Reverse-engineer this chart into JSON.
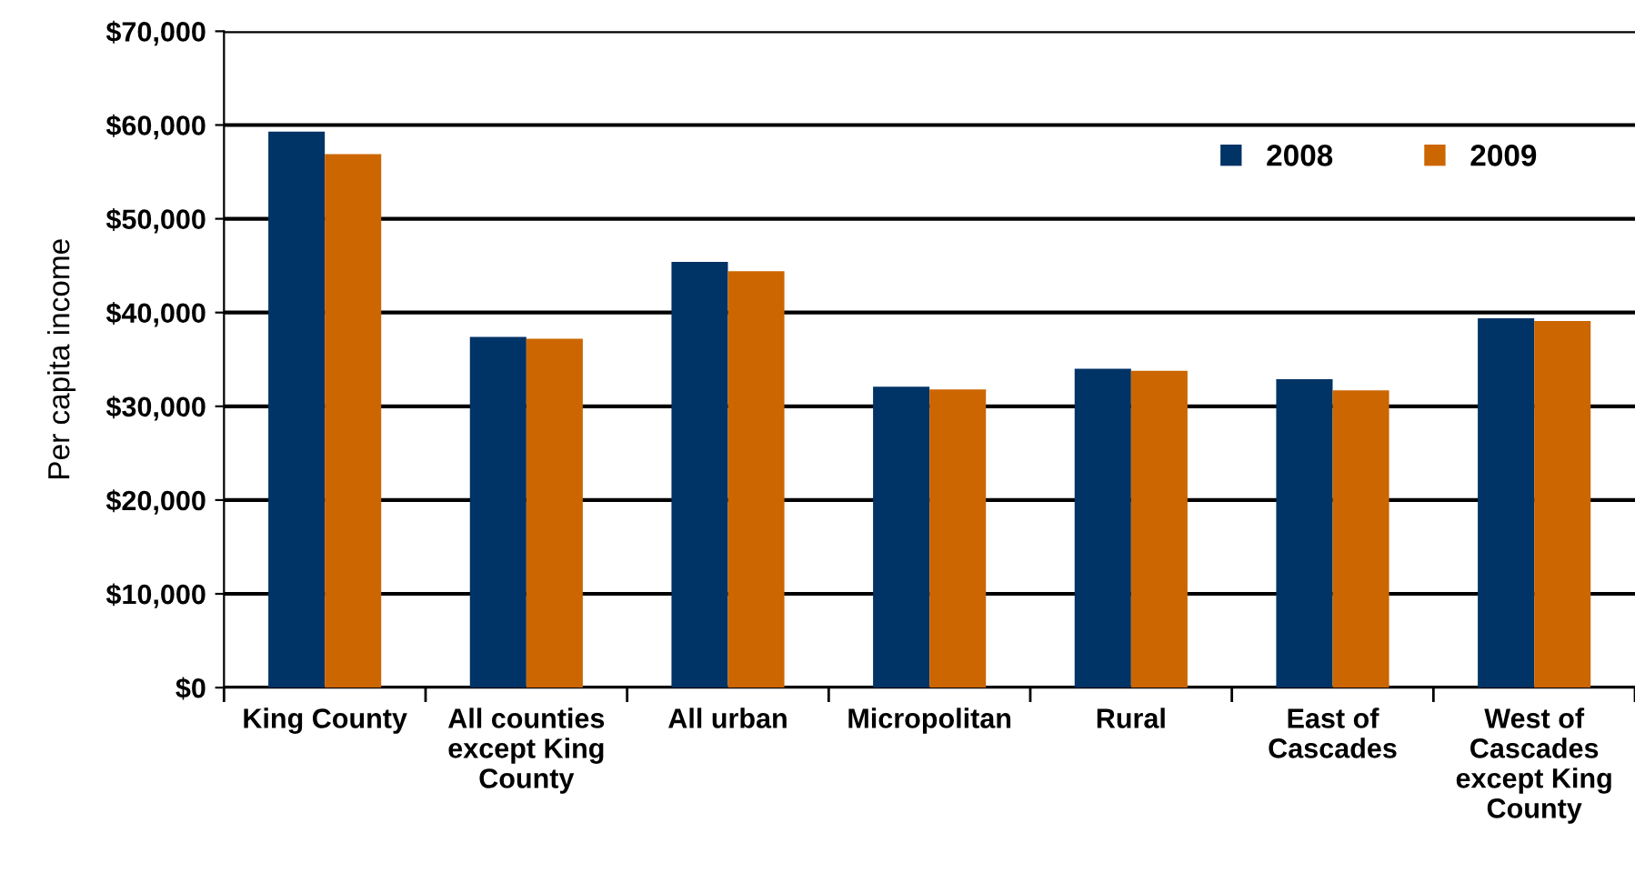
{
  "chart_data": {
    "type": "bar",
    "ylabel": "Per capita income",
    "categories": [
      "King County",
      "All counties\nexcept King\nCounty",
      "All urban",
      "Micropolitan",
      "Rural",
      "East of\nCascades",
      "West of\nCascades\nexcept King\nCounty"
    ],
    "series": [
      {
        "name": "2008",
        "color": "#003366",
        "values": [
          59300,
          37400,
          45400,
          32100,
          34000,
          32900,
          39400
        ]
      },
      {
        "name": "2009",
        "color": "#cc6600",
        "values": [
          56900,
          37200,
          44400,
          31800,
          33800,
          31700,
          39100
        ]
      }
    ],
    "ylim": [
      0,
      70000
    ],
    "yticks": [
      {
        "value": 0,
        "label": "$0"
      },
      {
        "value": 10000,
        "label": "$10,000"
      },
      {
        "value": 20000,
        "label": "$20,000"
      },
      {
        "value": 30000,
        "label": "$30,000"
      },
      {
        "value": 40000,
        "label": "$40,000"
      },
      {
        "value": 50000,
        "label": "$50,000"
      },
      {
        "value": 60000,
        "label": "$60,000"
      },
      {
        "value": 70000,
        "label": "$70,000"
      }
    ],
    "grid": "y",
    "legend": "top right"
  }
}
